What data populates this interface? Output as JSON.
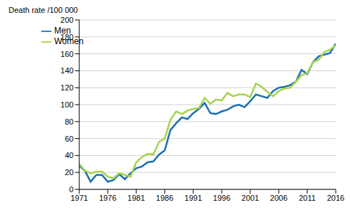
{
  "chart_data": {
    "type": "line",
    "y_label": "Death rate /100 000",
    "x": [
      1971,
      1972,
      1973,
      1974,
      1975,
      1976,
      1977,
      1978,
      1979,
      1980,
      1981,
      1982,
      1983,
      1984,
      1985,
      1986,
      1987,
      1988,
      1989,
      1990,
      1991,
      1992,
      1993,
      1994,
      1995,
      1996,
      1997,
      1998,
      1999,
      2000,
      2001,
      2002,
      2003,
      2004,
      2005,
      2006,
      2007,
      2008,
      2009,
      2010,
      2011,
      2012,
      2013,
      2014,
      2015,
      2016
    ],
    "series": [
      {
        "name": "Men",
        "color": "#1a6fb4",
        "values": [
          28,
          22,
          9,
          17,
          17,
          9,
          11,
          18,
          12,
          19,
          25,
          27,
          32,
          33,
          41,
          46,
          70,
          78,
          85,
          83,
          90,
          95,
          102,
          90,
          89,
          92,
          94,
          98,
          100,
          97,
          104,
          112,
          110,
          108,
          116,
          120,
          121,
          123,
          127,
          141,
          136,
          150,
          157,
          159,
          161,
          172
        ]
      },
      {
        "name": "Women",
        "color": "#a6d24a",
        "values": [
          30,
          22,
          19,
          21,
          21,
          15,
          13,
          19,
          17,
          15,
          32,
          38,
          42,
          41,
          56,
          60,
          82,
          92,
          89,
          93,
          95,
          96,
          108,
          101,
          106,
          105,
          114,
          110,
          112,
          112,
          109,
          125,
          121,
          115,
          110,
          116,
          119,
          120,
          127,
          135,
          137,
          150,
          153,
          162,
          165,
          170
        ]
      }
    ],
    "xlim": [
      1971,
      2016
    ],
    "xticks": [
      1971,
      1976,
      1981,
      1986,
      1991,
      1996,
      2001,
      2006,
      2011,
      2016
    ],
    "ylim": [
      0,
      200
    ],
    "yticks": [
      0,
      20,
      40,
      60,
      80,
      100,
      120,
      140,
      160,
      180,
      200
    ],
    "grid": true,
    "legend": "upper left"
  }
}
